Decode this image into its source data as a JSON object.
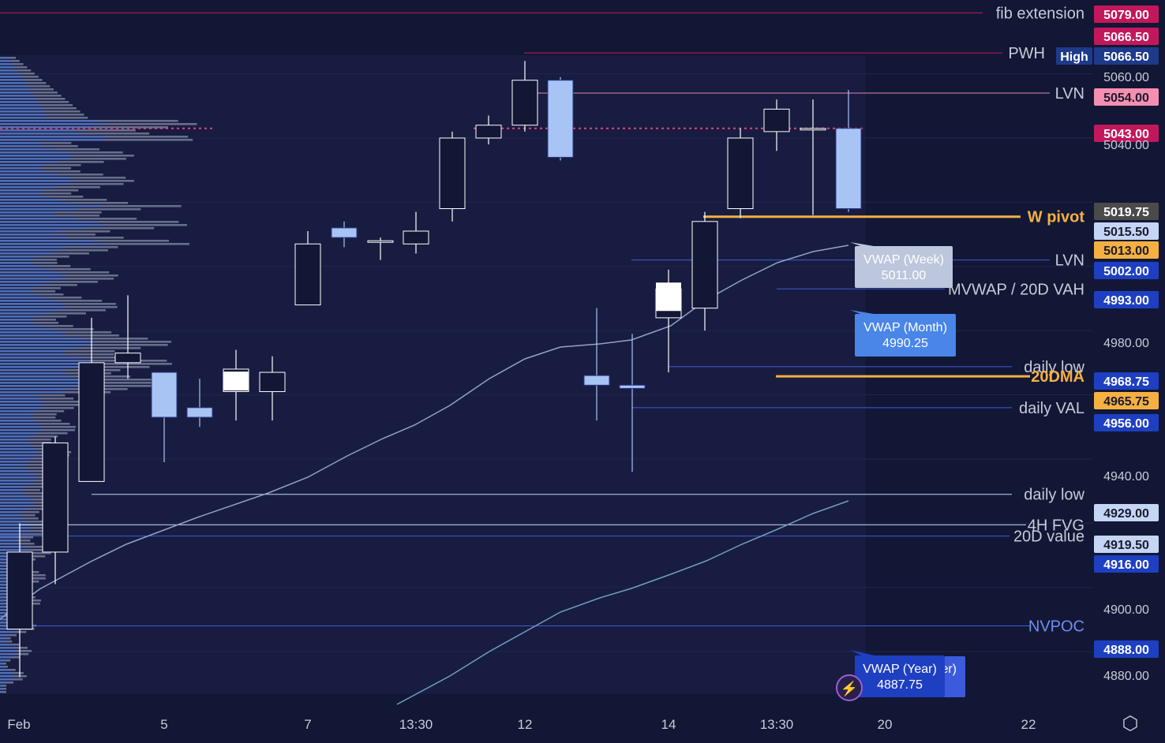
{
  "chart_data": {
    "type": "candlestick",
    "y_range": [
      4867,
      5083
    ],
    "x_ticks": [
      "Feb",
      "5",
      "7",
      "13:30",
      "12",
      "14",
      "13:30",
      "20",
      "22"
    ],
    "candles": [
      {
        "o": 4887,
        "h": 4920,
        "l": 4872,
        "c": 4911
      },
      {
        "o": 4911,
        "h": 4947,
        "l": 4901,
        "c": 4945
      },
      {
        "o": 4933,
        "h": 4984,
        "l": 4933,
        "c": 4970
      },
      {
        "o": 4970,
        "h": 4991,
        "l": 4965,
        "c": 4973
      },
      {
        "o": 4967,
        "h": 4967,
        "l": 4939,
        "c": 4953
      },
      {
        "o": 4956,
        "h": 4965,
        "l": 4950,
        "c": 4953
      },
      {
        "o": 4961,
        "h": 4974,
        "l": 4952,
        "c": 4968
      },
      {
        "o": 4961,
        "h": 4972,
        "l": 4952,
        "c": 4967
      },
      {
        "o": 4988,
        "h": 5011,
        "l": 4988,
        "c": 5007
      },
      {
        "o": 5012,
        "h": 5014,
        "l": 5006,
        "c": 5009
      },
      {
        "o": 5008,
        "h": 5009,
        "l": 5002,
        "c": 5008
      },
      {
        "o": 5007,
        "h": 5017,
        "l": 5004,
        "c": 5011
      },
      {
        "o": 5018,
        "h": 5042,
        "l": 5014,
        "c": 5040
      },
      {
        "o": 5040,
        "h": 5047,
        "l": 5038,
        "c": 5044
      },
      {
        "o": 5044,
        "h": 5064,
        "l": 5042,
        "c": 5058
      },
      {
        "o": 5058,
        "h": 5059,
        "l": 5033,
        "c": 5034
      },
      {
        "o": 4966,
        "h": 4987,
        "l": 4952,
        "c": 4963
      },
      {
        "o": 4963,
        "h": 4979,
        "l": 4936,
        "c": 4962
      },
      {
        "o": 4984,
        "h": 4999,
        "l": 4967,
        "c": 4993
      },
      {
        "o": 4987,
        "h": 5017,
        "l": 4980,
        "c": 5014
      },
      {
        "o": 5018,
        "h": 5043,
        "l": 5015,
        "c": 5040
      },
      {
        "o": 5042,
        "h": 5052,
        "l": 5036,
        "c": 5049
      },
      {
        "o": 5043,
        "h": 5052,
        "l": 5016,
        "c": 5043
      },
      {
        "o": 5043,
        "h": 5055,
        "l": 5017,
        "c": 5018
      }
    ],
    "levels": [
      {
        "name": "fib extension",
        "value": 5079.0,
        "color": "#c2185b"
      },
      {
        "name": "PWH",
        "value": 5066.5,
        "color": "#c2185b"
      },
      {
        "name": "LVN",
        "value": 5054.0,
        "color": "#e08ab0"
      },
      {
        "name": "W pivot",
        "value": 5015.5,
        "color": "#f5b041"
      },
      {
        "name": "LVN",
        "value": 5002.0,
        "color": "#3b5bdb"
      },
      {
        "name": "MVWAP / 20D VAH",
        "value": 4993.0,
        "color": "#3b5bdb"
      },
      {
        "name": "daily low",
        "value": 4968.75,
        "color": "#3b5bdb"
      },
      {
        "name": "20DMA",
        "value": 4965.75,
        "color": "#f5b041"
      },
      {
        "name": "daily VAL",
        "value": 4956.0,
        "color": "#3b5bdb"
      },
      {
        "name": "daily low",
        "value": 4929.0,
        "color": "#c8d6f5"
      },
      {
        "name": "4H FVG",
        "value": 4919.5,
        "color": "#c8d6f5"
      },
      {
        "name": "20D value",
        "value": 4916.0,
        "color": "#3b5bdb"
      },
      {
        "name": "NVPOC",
        "value": 4888.0,
        "color": "#3b5bdb"
      }
    ],
    "vwap": [
      {
        "name": "VWAP (Week)",
        "value": "5011.00"
      },
      {
        "name": "VWAP (Month)",
        "value": "4990.25"
      },
      {
        "name": "VWAP (Year)",
        "value": "4887.75"
      }
    ],
    "price_labels": [
      {
        "text": "5079.00",
        "value": 5079.0,
        "bg": "#c2185b",
        "fg": "#ffffff"
      },
      {
        "text": "5066.50",
        "value": 5066.5,
        "bg": "#c2185b",
        "fg": "#ffffff"
      },
      {
        "text": "5066.50",
        "value": 5066.5,
        "bg": "#1e3a8a",
        "fg": "#ffffff",
        "tag": "High"
      },
      {
        "text": "5060.00",
        "value": 5060.0,
        "bg": "",
        "fg": "#c8cbd6"
      },
      {
        "text": "5054.00",
        "value": 5054.0,
        "bg": "#f48fb1",
        "fg": "#1a1a2e"
      },
      {
        "text": "5043.00",
        "value": 5043.0,
        "bg": "#c2185b",
        "fg": "#ffffff"
      },
      {
        "text": "5040.00",
        "value": 5040.0,
        "bg": "",
        "fg": "#c8cbd6"
      },
      {
        "text": "5019.75",
        "value": 5019.75,
        "bg": "#4a4a4a",
        "fg": "#ffffff"
      },
      {
        "text": "5015.50",
        "value": 5015.5,
        "bg": "#c5d5f5",
        "fg": "#1a1a2e"
      },
      {
        "text": "5013.00",
        "value": 5013.0,
        "bg": "#f5b041",
        "fg": "#1a1a2e"
      },
      {
        "text": "5002.00",
        "value": 5002.0,
        "bg": "#1e3fc2",
        "fg": "#ffffff"
      },
      {
        "text": "4993.00",
        "value": 4993.0,
        "bg": "#1e3fc2",
        "fg": "#ffffff"
      },
      {
        "text": "4980.00",
        "value": 4980.0,
        "bg": "",
        "fg": "#c8cbd6"
      },
      {
        "text": "4968.75",
        "value": 4968.75,
        "bg": "#1e3fc2",
        "fg": "#ffffff"
      },
      {
        "text": "4965.75",
        "value": 4965.75,
        "bg": "#f5b041",
        "fg": "#1a1a2e"
      },
      {
        "text": "4956.00",
        "value": 4956.0,
        "bg": "#1e3fc2",
        "fg": "#ffffff"
      },
      {
        "text": "4940.00",
        "value": 4940.0,
        "bg": "",
        "fg": "#c8cbd6"
      },
      {
        "text": "4929.00",
        "value": 4929.0,
        "bg": "#c5d5f5",
        "fg": "#1a1a2e"
      },
      {
        "text": "4919.50",
        "value": 4919.5,
        "bg": "#c5d5f5",
        "fg": "#1a1a2e"
      },
      {
        "text": "4916.00",
        "value": 4916.0,
        "bg": "#1e3fc2",
        "fg": "#ffffff"
      },
      {
        "text": "4900.00",
        "value": 4900.0,
        "bg": "",
        "fg": "#c8cbd6"
      },
      {
        "text": "4888.00",
        "value": 4888.0,
        "bg": "#1e3fc2",
        "fg": "#ffffff"
      },
      {
        "text": "4880.00",
        "value": 4880.0,
        "bg": "",
        "fg": "#c8cbd6"
      }
    ],
    "colors": {
      "background": "#131736",
      "bull_body": "#131736",
      "bull_border": "#ffffff",
      "bear_body": "#a8c4f5",
      "vwap_week": "#8fa3c8",
      "vwap_year": "#6f9fc0"
    }
  },
  "icons": {
    "settings": "settings-hexagon-icon",
    "lightning": "lightning-icon"
  },
  "settings_glyph": "⬡",
  "lightning_glyph": "⚡",
  "clipped_label": "er)"
}
